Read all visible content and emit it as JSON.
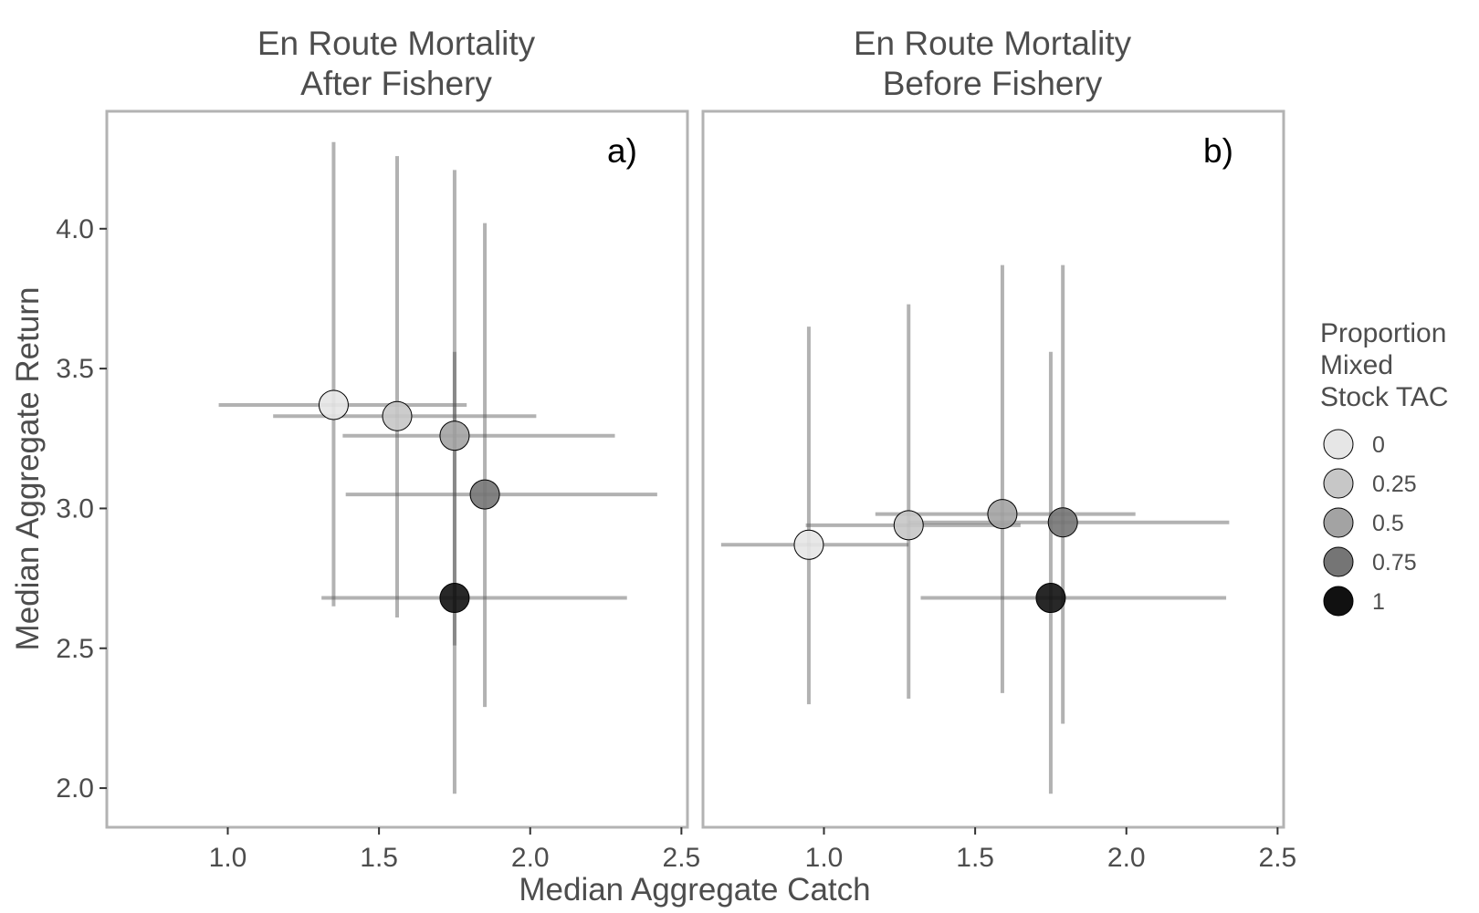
{
  "chart_data": {
    "type": "scatter",
    "xlabel": "Median Aggregate Catch",
    "ylabel": "Median Aggregate Return",
    "xlim": [
      0.6,
      2.52
    ],
    "ylim": [
      1.86,
      4.42
    ],
    "x_ticks": [
      1.0,
      1.5,
      2.0,
      2.5
    ],
    "y_ticks": [
      2.0,
      2.5,
      3.0,
      3.5,
      4.0
    ],
    "x_tick_labels": [
      "1.0",
      "1.5",
      "2.0",
      "2.5"
    ],
    "y_tick_labels": [
      "2.0",
      "2.5",
      "3.0",
      "3.5",
      "4.0"
    ],
    "grid": false,
    "legend": {
      "position": "right",
      "title": [
        "Proportion",
        "Mixed",
        "Stock TAC"
      ],
      "entries": [
        {
          "label": "0",
          "value": 0,
          "color": "#e6e6e6"
        },
        {
          "label": "0.25",
          "value": 0.25,
          "color": "#c7c7c7"
        },
        {
          "label": "0.5",
          "value": 0.5,
          "color": "#a3a3a3"
        },
        {
          "label": "0.75",
          "value": 0.75,
          "color": "#757575"
        },
        {
          "label": "1",
          "value": 1,
          "color": "#111111"
        }
      ]
    },
    "panels": [
      {
        "title": [
          "En Route Mortality",
          "After Fishery"
        ],
        "tag": "a)",
        "points": [
          {
            "proportion": 0,
            "x": 1.35,
            "y": 3.37,
            "x_low": 0.97,
            "x_high": 1.79,
            "y_low": 2.65,
            "y_high": 4.31
          },
          {
            "proportion": 0.25,
            "x": 1.56,
            "y": 3.33,
            "x_low": 1.15,
            "x_high": 2.02,
            "y_low": 2.61,
            "y_high": 4.26
          },
          {
            "proportion": 0.5,
            "x": 1.75,
            "y": 3.26,
            "x_low": 1.38,
            "x_high": 2.28,
            "y_low": 2.51,
            "y_high": 4.21
          },
          {
            "proportion": 0.75,
            "x": 1.85,
            "y": 3.05,
            "x_low": 1.39,
            "x_high": 2.42,
            "y_low": 2.29,
            "y_high": 4.02
          },
          {
            "proportion": 1,
            "x": 1.75,
            "y": 2.68,
            "x_low": 1.31,
            "x_high": 2.32,
            "y_low": 1.98,
            "y_high": 3.56
          }
        ]
      },
      {
        "title": [
          "En Route Mortality",
          "Before Fishery"
        ],
        "tag": "b)",
        "points": [
          {
            "proportion": 0,
            "x": 0.95,
            "y": 2.87,
            "x_low": 0.66,
            "x_high": 1.28,
            "y_low": 2.3,
            "y_high": 3.65
          },
          {
            "proportion": 0.25,
            "x": 1.28,
            "y": 2.94,
            "x_low": 0.94,
            "x_high": 1.65,
            "y_low": 2.32,
            "y_high": 3.73
          },
          {
            "proportion": 0.5,
            "x": 1.59,
            "y": 2.98,
            "x_low": 1.17,
            "x_high": 2.03,
            "y_low": 2.34,
            "y_high": 3.87
          },
          {
            "proportion": 0.75,
            "x": 1.79,
            "y": 2.95,
            "x_low": 1.28,
            "x_high": 2.34,
            "y_low": 2.23,
            "y_high": 3.87
          },
          {
            "proportion": 1,
            "x": 1.75,
            "y": 2.68,
            "x_low": 1.32,
            "x_high": 2.33,
            "y_low": 1.98,
            "y_high": 3.56
          }
        ]
      }
    ]
  }
}
